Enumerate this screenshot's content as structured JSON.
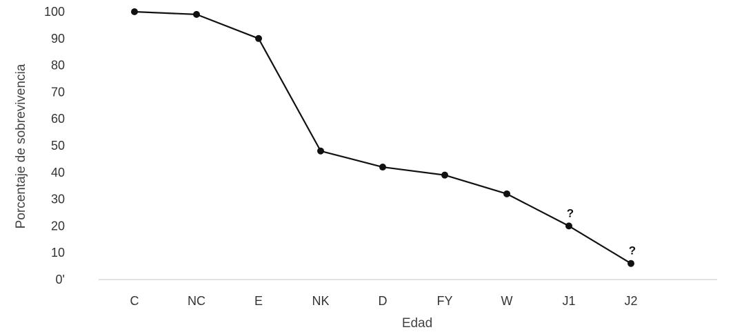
{
  "chart_data": {
    "type": "line",
    "title": "",
    "xlabel": "Edad",
    "ylabel": "Porcentaje de sobrevivencia",
    "categories": [
      "C",
      "NC",
      "E",
      "NK",
      "D",
      "FY",
      "W",
      "J1",
      "J2"
    ],
    "series": [
      {
        "values": [
          100,
          99,
          90,
          48,
          42,
          39,
          32,
          20,
          6
        ]
      }
    ],
    "y_tick_labels": [
      "0'",
      "10",
      "20",
      "30",
      "40",
      "50",
      "60",
      "70",
      "80",
      "90",
      "100"
    ],
    "ylim": [
      0,
      100
    ],
    "grid": false,
    "legend": "none",
    "annotations": [
      {
        "category": "J1",
        "text": "?"
      },
      {
        "category": "J2",
        "text": "?"
      }
    ],
    "colors": {
      "line": "#111111",
      "axis": "#d9d9d9",
      "text": "#333333"
    }
  }
}
